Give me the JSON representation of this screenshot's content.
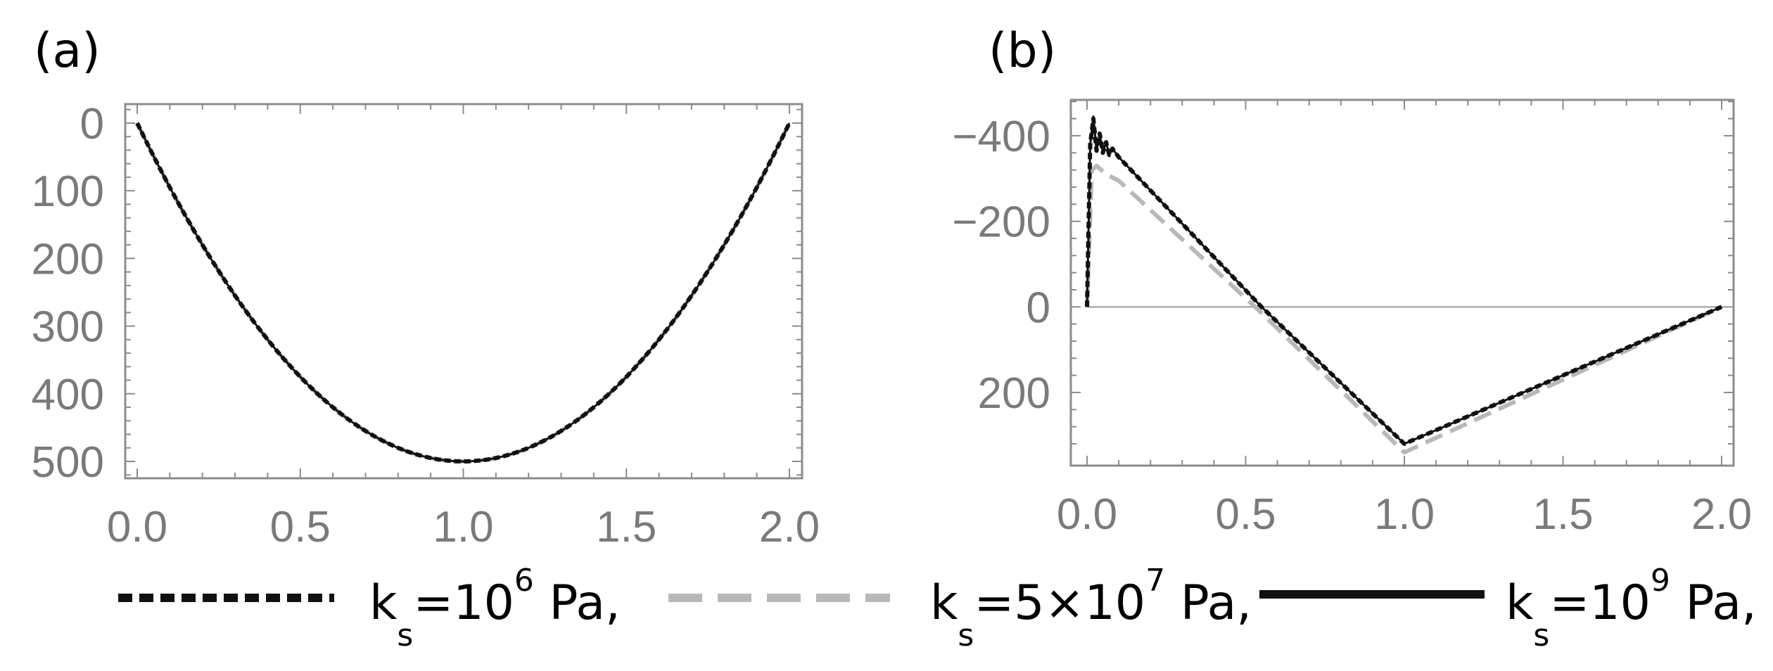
{
  "chart_data": [
    {
      "panel_label": "(a)",
      "type": "line",
      "xlim": [
        0,
        2
      ],
      "ylim": [
        0,
        520
      ],
      "y_inverted": true,
      "x_ticks": [
        "0.0",
        "0.5",
        "1.0",
        "1.5",
        "2.0"
      ],
      "x_tick_values": [
        0,
        0.5,
        1,
        1.5,
        2
      ],
      "y_ticks": [
        "0",
        "100",
        "200",
        "300",
        "400",
        "500"
      ],
      "y_tick_values": [
        0,
        100,
        200,
        300,
        400,
        500
      ],
      "series": [
        {
          "name": "k_s=10^6 Pa",
          "style": "dotted-black",
          "x": [
            0,
            0.25,
            0.5,
            0.75,
            1.0,
            1.25,
            1.5,
            1.75,
            2.0
          ],
          "y": [
            0,
            219,
            375,
            469,
            500,
            469,
            375,
            219,
            0
          ]
        },
        {
          "name": "k_s=5×10^7 Pa",
          "style": "dashed-gray",
          "x": [
            0,
            0.25,
            0.5,
            0.75,
            1.0,
            1.25,
            1.5,
            1.75,
            2.0
          ],
          "y": [
            0,
            219,
            375,
            469,
            500,
            469,
            375,
            219,
            0
          ]
        },
        {
          "name": "k_s=10^9 Pa",
          "style": "solid-black",
          "x": [
            0,
            0.25,
            0.5,
            0.75,
            1.0,
            1.25,
            1.5,
            1.75,
            2.0
          ],
          "y": [
            0,
            219,
            375,
            469,
            500,
            469,
            375,
            219,
            0
          ]
        }
      ]
    },
    {
      "panel_label": "(b)",
      "type": "line",
      "xlim": [
        0,
        2
      ],
      "ylim": [
        -470,
        390
      ],
      "y_inverted": true,
      "zero_line": true,
      "x_ticks": [
        "0.0",
        "0.5",
        "1.0",
        "1.5",
        "2.0"
      ],
      "x_tick_values": [
        0,
        0.5,
        1,
        1.5,
        2
      ],
      "y_ticks": [
        "−400",
        "−200",
        "0",
        "200"
      ],
      "y_tick_values": [
        -400,
        -200,
        0,
        200
      ],
      "series": [
        {
          "name": "k_s=10^6 Pa",
          "style": "dotted-black",
          "x": [
            0,
            0.01,
            0.02,
            0.03,
            0.04,
            0.05,
            0.06,
            0.07,
            0.08,
            0.1,
            0.55,
            1.0,
            2.0
          ],
          "y": [
            0,
            -380,
            -440,
            -365,
            -405,
            -360,
            -385,
            -355,
            -370,
            -350,
            0,
            320,
            0
          ]
        },
        {
          "name": "k_s=5×10^7 Pa",
          "style": "dashed-gray",
          "x": [
            0,
            0.015,
            0.03,
            0.06,
            0.1,
            0.53,
            1.0,
            2.0
          ],
          "y": [
            0,
            -320,
            -330,
            -310,
            -295,
            0,
            340,
            0
          ]
        },
        {
          "name": "k_s=10^9 Pa",
          "style": "solid-black",
          "x": [
            0,
            0.01,
            0.02,
            0.03,
            0.04,
            0.05,
            0.06,
            0.07,
            0.08,
            0.1,
            0.55,
            1.0,
            2.0
          ],
          "y": [
            0,
            -380,
            -445,
            -365,
            -405,
            -360,
            -385,
            -355,
            -370,
            -350,
            0,
            320,
            0
          ]
        }
      ]
    }
  ],
  "legend": [
    {
      "prefix": "k",
      "sub": "s",
      "base": "=10",
      "sup": "6",
      "suffix": " Pa,",
      "style": "dotted-black"
    },
    {
      "prefix": "k",
      "sub": "s",
      "base": "=5×10",
      "sup": "7",
      "suffix": " Pa,",
      "style": "dashed-gray"
    },
    {
      "prefix": "k",
      "sub": "s",
      "base": "=10",
      "sup": "9",
      "suffix": " Pa,",
      "style": "solid-black"
    }
  ],
  "colors": {
    "black": "#111111",
    "gray": "#b8b8b8",
    "axis": "#8c8c8c",
    "tick_text": "#7a7a7a",
    "zero_line": "#9a9a9a"
  }
}
